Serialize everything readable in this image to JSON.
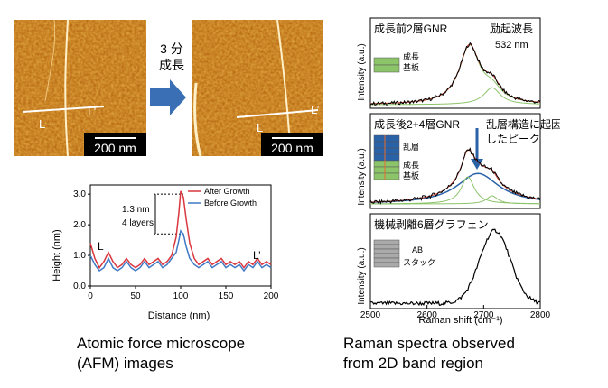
{
  "afm": {
    "before_scale": "200 nm",
    "after_scale": "200 nm",
    "arrow_label_line1": "3 分",
    "arrow_label_line2": "成長",
    "marker_L": "L",
    "marker_Lp": "L’"
  },
  "profile": {
    "ylabel": "Height (nm)",
    "xlabel": "Distance (nm)",
    "annotation_line1": "1.3 nm",
    "annotation_line2": "4 layers",
    "marker_L": "L",
    "marker_Lp": "L’",
    "series": [
      {
        "name": "After Growth",
        "color": "#d9363e"
      },
      {
        "name": "Before Growth",
        "color": "#3f78c4"
      }
    ],
    "chart_data": {
      "type": "line",
      "xlim": [
        0,
        200
      ],
      "ylim": [
        0,
        3.3
      ],
      "xticks": [
        "0",
        "50",
        "100",
        "150",
        "200"
      ],
      "yticks": [
        "0.0",
        "1.0",
        "2.0",
        "3.0"
      ],
      "x": [
        0,
        5,
        10,
        15,
        20,
        25,
        30,
        35,
        40,
        45,
        50,
        55,
        60,
        65,
        70,
        75,
        80,
        85,
        90,
        95,
        98,
        100,
        103,
        106,
        110,
        115,
        120,
        125,
        130,
        135,
        140,
        145,
        150,
        155,
        160,
        165,
        170,
        175,
        180,
        185,
        190,
        195,
        200
      ],
      "after": [
        1.4,
        0.9,
        0.6,
        0.8,
        1.1,
        0.8,
        0.6,
        0.7,
        0.9,
        0.7,
        0.6,
        0.7,
        0.9,
        0.7,
        0.8,
        0.9,
        0.7,
        0.8,
        1.0,
        1.6,
        2.4,
        3.1,
        2.9,
        2.2,
        1.4,
        0.9,
        0.7,
        0.8,
        0.9,
        0.7,
        0.8,
        0.9,
        0.7,
        0.8,
        0.7,
        0.8,
        0.6,
        0.8,
        0.7,
        0.9,
        0.7,
        0.8,
        0.7
      ],
      "before": [
        1.0,
        0.7,
        0.5,
        0.6,
        0.9,
        0.6,
        0.5,
        0.6,
        0.8,
        0.6,
        0.5,
        0.6,
        0.8,
        0.6,
        0.7,
        0.8,
        0.6,
        0.7,
        0.9,
        1.1,
        1.5,
        1.8,
        1.7,
        1.3,
        0.9,
        0.7,
        0.6,
        0.7,
        0.8,
        0.6,
        0.7,
        0.8,
        0.6,
        0.7,
        0.6,
        0.7,
        0.5,
        0.7,
        0.6,
        0.8,
        0.6,
        0.7,
        0.6
      ]
    }
  },
  "raman": {
    "xlabel": "Raman shift (cm⁻¹)",
    "ylabel": "Intensity (a.u.)",
    "xticks": [
      "2500",
      "2600",
      "2700",
      "2800"
    ],
    "xlim": [
      2500,
      2800
    ],
    "panel1": {
      "title": "成長前2層GNR",
      "excite_line1": "励起波長",
      "excite_line2": "532 nm",
      "legend_top": "成長",
      "legend_bottom": "基板"
    },
    "panel2": {
      "title": "成長後2+4層GNR",
      "annotation_line1": "乱層構造に起因",
      "annotation_line2": "したピーク",
      "legend_top": "乱層",
      "legend_mid": "成長",
      "legend_bottom": "基板"
    },
    "panel3": {
      "title": "機械剥離6層グラフェン",
      "legend_line1": "AB",
      "legend_line2": "スタック"
    }
  },
  "captions": {
    "left_line1": "Atomic force microscope",
    "left_line2": "(AFM) images",
    "right_line1": "Raman spectra observed",
    "right_line2": "from 2D band region"
  },
  "colors": {
    "afm_base": "#c8700f",
    "arrow": "#3a6fb5",
    "green": "#8cc46a",
    "blue": "#2a62a8",
    "black": "#000000"
  }
}
